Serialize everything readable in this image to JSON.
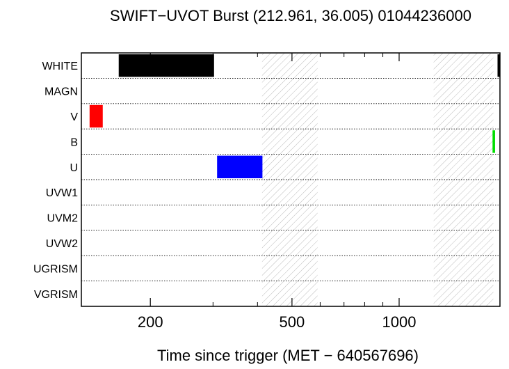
{
  "chart_data": {
    "type": "timeline",
    "title": "SWIFT−UVOT Burst (212.961, 36.005) 01044236000",
    "xlabel": "Time since trigger (MET − 640567696)",
    "xscale": "log",
    "xlim": [
      128,
      1920
    ],
    "xticks_major": [
      {
        "value": 200,
        "label": "200"
      },
      {
        "value": 500,
        "label": "500"
      },
      {
        "value": 1000,
        "label": "1000"
      }
    ],
    "xticks_minor": [
      300,
      400,
      600,
      700,
      800,
      900
    ],
    "filters": [
      "WHITE",
      "MAGN",
      "V",
      "B",
      "U",
      "UVW1",
      "UVM2",
      "UVW2",
      "UGRISM",
      "VGRISM"
    ],
    "exposures": [
      {
        "filter": "WHITE",
        "start": 163,
        "end": 302,
        "color": "#000000"
      },
      {
        "filter": "V",
        "start": 135,
        "end": 147,
        "color": "#ff0000"
      },
      {
        "filter": "U",
        "start": 308,
        "end": 413,
        "color": "#0000ff"
      },
      {
        "filter": "B",
        "start": 1830,
        "end": 1860,
        "color": "#00dd00"
      },
      {
        "filter": "WHITE",
        "start": 1890,
        "end": 1915,
        "color": "#000000"
      }
    ],
    "hatched_intervals": [
      {
        "start": 412,
        "end": 590
      },
      {
        "start": 1250,
        "end": 1840
      }
    ]
  }
}
